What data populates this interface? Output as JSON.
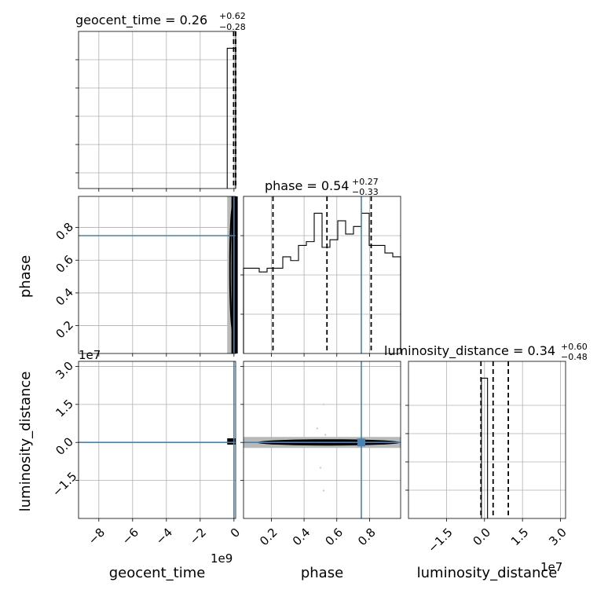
{
  "chart_data": {
    "type": "corner",
    "parameters": [
      "geocent_time",
      "phase",
      "luminosity_distance"
    ],
    "titles": [
      {
        "label": "geocent_time = 0.26",
        "plus": "+0.62",
        "minus": "−0.28"
      },
      {
        "label": "phase = 0.54",
        "plus": "+0.27",
        "minus": "−0.33"
      },
      {
        "label": "luminosity_distance = 0.34",
        "plus": "+0.60",
        "minus": "−0.48"
      }
    ],
    "axis_labels": {
      "x": [
        "geocent_time",
        "phase",
        "luminosity_distance"
      ],
      "y": [
        "phase",
        "luminosity_distance"
      ]
    },
    "offset_texts": [
      "1e9",
      "1e7",
      "1e7"
    ],
    "axes": {
      "geocent_time": {
        "range": [
          -9.2,
          0.1
        ],
        "ticks": [
          -8,
          -6,
          -4,
          -2,
          0
        ],
        "tick_labels": [
          "−8",
          "−6",
          "−4",
          "−2",
          "0"
        ],
        "scale": "1e9"
      },
      "phase": {
        "range": [
          0.03,
          0.99
        ],
        "ticks": [
          0.2,
          0.4,
          0.6,
          0.8
        ],
        "tick_labels": [
          "0.2",
          "0.4",
          "0.6",
          "0.8"
        ]
      },
      "luminosity_distance": {
        "range": [
          -3.0,
          3.2
        ],
        "ticks": [
          -1.5,
          0.0,
          1.5,
          3.0
        ],
        "tick_labels": [
          "−1.5",
          "0.0",
          "1.5",
          "3.0"
        ],
        "scale": "1e7"
      }
    },
    "truths": {
      "geocent_time": 0.0,
      "phase": 0.75,
      "luminosity_distance": 0.0
    },
    "quantiles": {
      "geocent_time": [
        -0.02,
        0.26,
        0.88
      ],
      "phase": [
        0.21,
        0.54,
        0.81
      ],
      "luminosity_distance": [
        -0.14,
        0.34,
        0.94
      ]
    },
    "phase_histogram": {
      "edges": [
        0.03,
        0.078,
        0.126,
        0.174,
        0.222,
        0.27,
        0.318,
        0.366,
        0.414,
        0.462,
        0.51,
        0.558,
        0.606,
        0.654,
        0.702,
        0.75,
        0.798,
        0.846,
        0.894,
        0.942,
        0.99
      ],
      "counts": [
        45,
        45,
        43,
        45,
        45,
        51,
        49,
        57,
        59,
        74,
        56,
        60,
        70,
        63,
        67,
        74,
        57,
        57,
        53,
        51
      ]
    },
    "geocent_time_histogram": {
      "edges": [
        -0.4,
        0.0,
        0.1
      ],
      "counts": [
        100,
        100
      ]
    },
    "luminosity_distance_histogram": {
      "edges": [
        -0.12,
        0.0,
        0.12
      ],
      "counts": [
        100,
        100
      ]
    },
    "grid": true
  }
}
